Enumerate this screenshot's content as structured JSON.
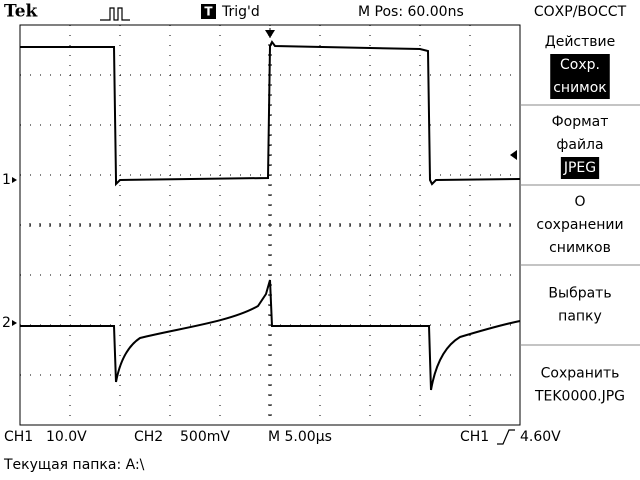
{
  "header": {
    "brand": "Tek",
    "trigger_icon": "T",
    "trigger_status": "Trig'd",
    "position": "M Pos: 60.00ns",
    "menu_title": "СОХР/ВОССТ"
  },
  "channels": [
    {
      "marker": "1"
    },
    {
      "marker": "2"
    }
  ],
  "menu": [
    {
      "label": [
        "Действие"
      ],
      "selected": [
        "Сохр.",
        "снимок"
      ]
    },
    {
      "label": [
        "Формат",
        "файла"
      ],
      "selected": [
        "JPEG"
      ]
    },
    {
      "label": [
        "О",
        "сохранении",
        "снимков"
      ]
    },
    {
      "label": [
        "Выбрать",
        "папку"
      ]
    },
    {
      "label": [
        "Сохранить",
        "TEK0000.JPG"
      ]
    }
  ],
  "status": {
    "ch1": "CH1",
    "ch1_scale": "10.0V",
    "ch2": "CH2",
    "ch2_scale": "500mV",
    "timebase": "M 5.00µs",
    "trigger_source": "CH1",
    "trigger_level": "4.60V"
  },
  "folder": "Текущая папка: A:\\"
}
